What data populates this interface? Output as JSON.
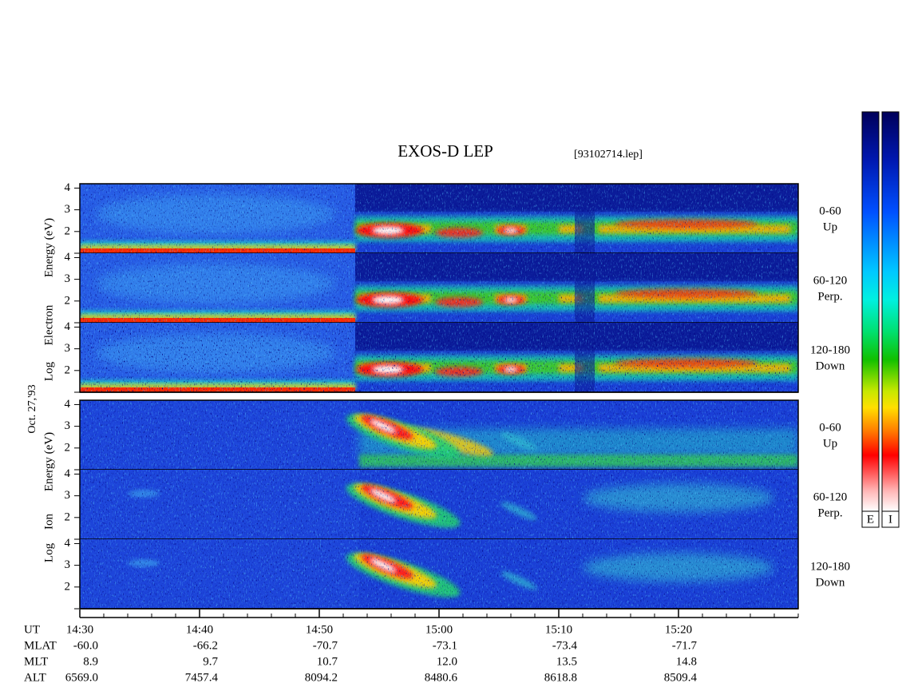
{
  "chart_data": {
    "type": "spectrogram",
    "title": "EXOS-D LEP",
    "file": "[93102714.lep]",
    "date": "Oct. 27,'93",
    "groups": [
      {
        "label_lines": [
          "Log",
          "Electron",
          "Energy (eV)"
        ],
        "panels": [
          {
            "angle": "0-60",
            "direction": "Up"
          },
          {
            "angle": "60-120",
            "direction": "Perp."
          },
          {
            "angle": "120-180",
            "direction": "Down"
          }
        ]
      },
      {
        "label_lines": [
          "Log",
          "Ion",
          "Energy (eV)"
        ],
        "panels": [
          {
            "angle": "0-60",
            "direction": "Up"
          },
          {
            "angle": "60-120",
            "direction": "Perp."
          },
          {
            "angle": "120-180",
            "direction": "Down"
          }
        ]
      }
    ],
    "ylim": [
      1,
      4.2
    ],
    "yticks": [
      2,
      3,
      4
    ],
    "x_axis_name": "UT",
    "xlim": [
      870,
      930
    ],
    "xticks": [
      {
        "value": 870,
        "label": "14:30"
      },
      {
        "value": 880,
        "label": "14:40"
      },
      {
        "value": 890,
        "label": "14:50"
      },
      {
        "value": 900,
        "label": "15:00"
      },
      {
        "value": 910,
        "label": "15:10"
      },
      {
        "value": 920,
        "label": "15:20"
      }
    ],
    "ephemeris": [
      {
        "name": "MLAT",
        "values": [
          "-60.0",
          "-66.2",
          "-70.7",
          "-73.1",
          "-73.4",
          "-71.7"
        ]
      },
      {
        "name": "MLT",
        "values": [
          "8.9",
          "9.7",
          "10.7",
          "12.0",
          "13.5",
          "14.8"
        ]
      },
      {
        "name": "ALT",
        "values": [
          "6569.0",
          "7457.4",
          "8094.2",
          "8480.6",
          "8618.8",
          "8509.4"
        ]
      }
    ],
    "colorbars": [
      "E",
      "I"
    ]
  }
}
